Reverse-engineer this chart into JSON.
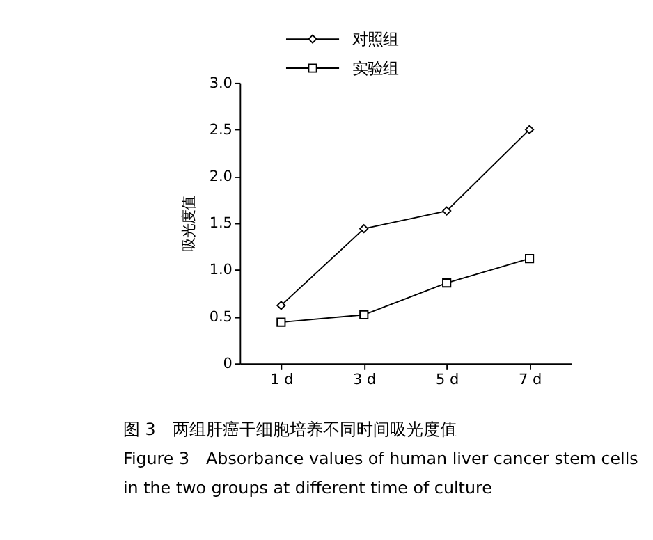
{
  "chart_data": {
    "type": "line",
    "ylabel": "吸光度值",
    "categories": [
      "1 d",
      "3 d",
      "5 d",
      "7 d"
    ],
    "series": [
      {
        "name": "对照组",
        "color": "#000000",
        "marker": "diamond",
        "values": [
          0.62,
          1.44,
          1.63,
          2.5
        ]
      },
      {
        "name": "实验组",
        "color": "#000000",
        "marker": "square",
        "values": [
          0.44,
          0.52,
          0.86,
          1.12
        ]
      }
    ],
    "ylim": [
      0,
      3
    ],
    "yticks": [
      {
        "value": 0,
        "label": "0"
      },
      0.5,
      {
        "value": 1,
        "label": "1.0"
      },
      1.5,
      {
        "value": 2,
        "label": "2.0"
      },
      2.5,
      {
        "value": 3,
        "label": "3.0"
      }
    ],
    "grid": false,
    "legend": "top",
    "line_style": "solid",
    "annotations": [
      "图 3　两组肝癌干细胞培养不同时间吸光度值",
      "Figure 3　Absorbance values of human liver cancer stem cells",
      "in the two groups at different time of culture"
    ]
  }
}
